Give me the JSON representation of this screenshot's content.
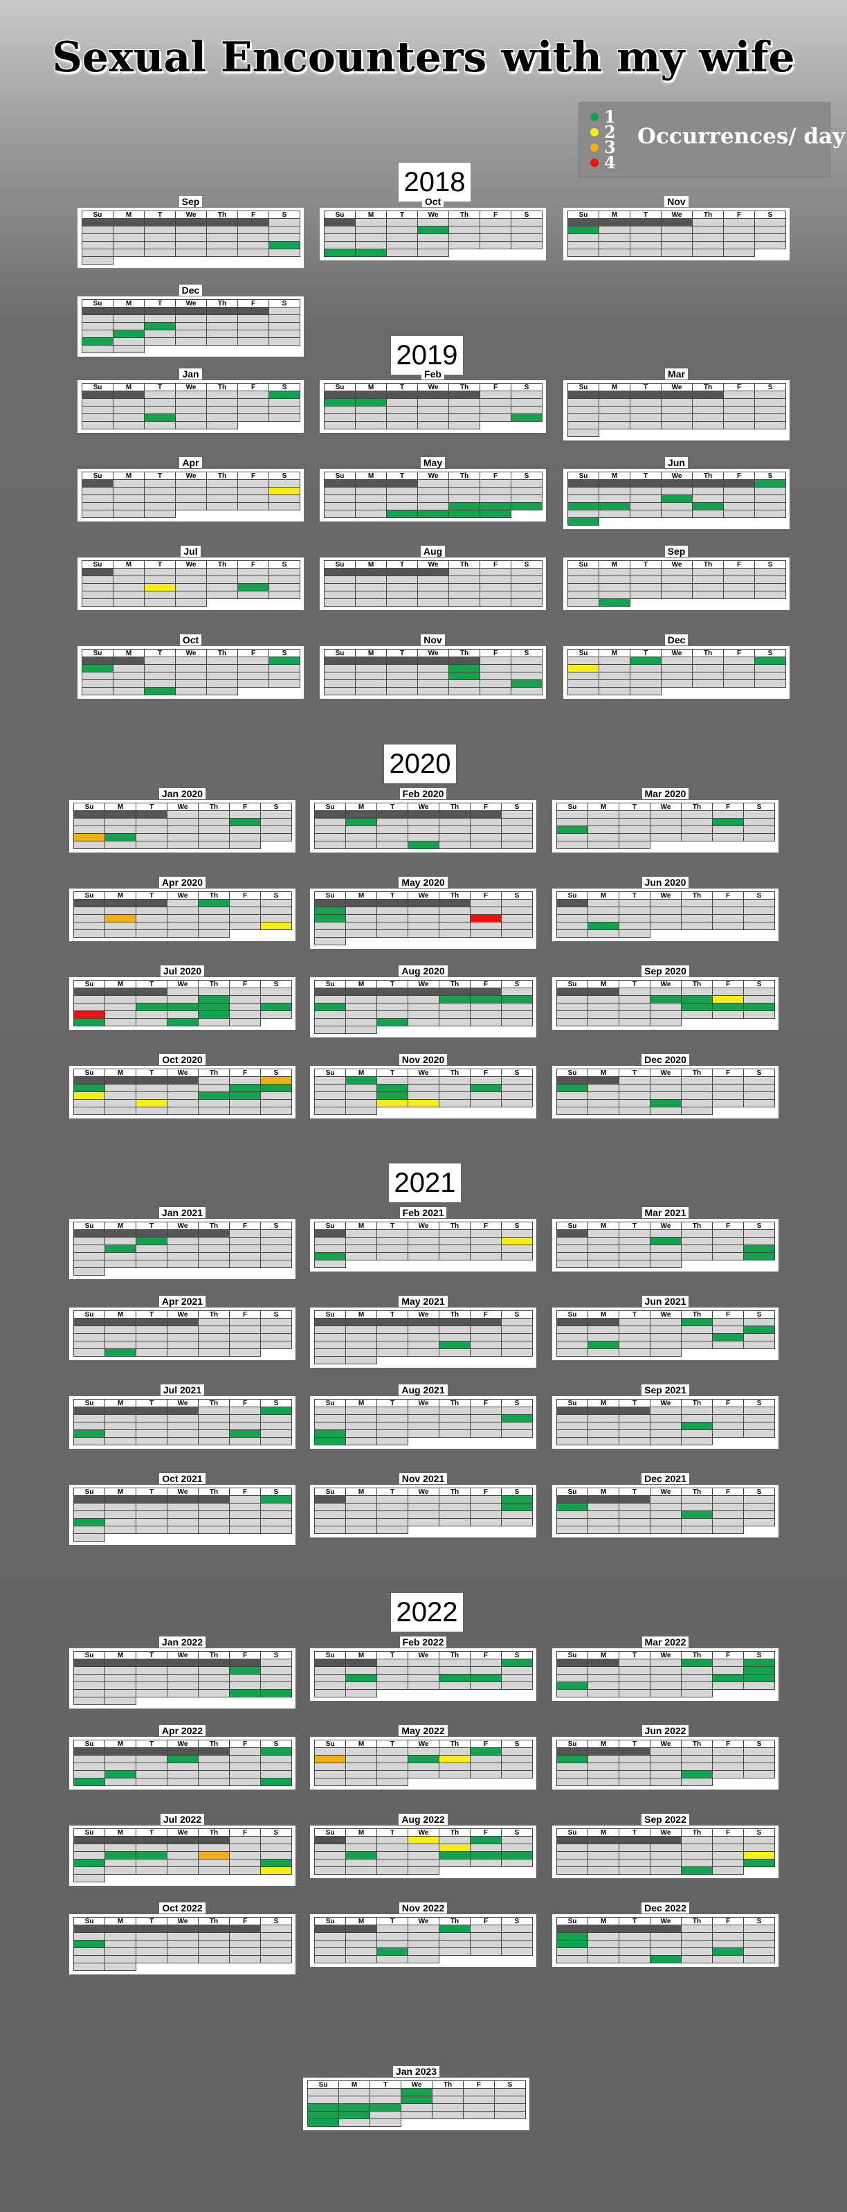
{
  "title": "Sexual Encounters with my wife",
  "legend": {
    "label": "Occurrences/ day",
    "items": [
      {
        "value": "1",
        "color": "#12a34e"
      },
      {
        "value": "2",
        "color": "#f7ee16"
      },
      {
        "value": "3",
        "color": "#f2b010"
      },
      {
        "value": "4",
        "color": "#ee1111"
      }
    ]
  },
  "day_headers": [
    "Su",
    "M",
    "T",
    "We",
    "Th",
    "F",
    "S"
  ],
  "chart_data": {
    "type": "heatmap",
    "title": "Sexual Encounters with my wife",
    "legend_title": "Occurrences/ day",
    "years": [
      {
        "year": "2018",
        "months": [
          {
            "name": "Sep",
            "first_weekday": 6,
            "days": 30,
            "counts": {
              "22": 1
            }
          },
          {
            "name": "Oct",
            "first_weekday": 1,
            "days": 31,
            "counts": {
              "10": 1,
              "28": 1,
              "29": 1
            }
          },
          {
            "name": "Nov",
            "first_weekday": 4,
            "days": 30,
            "counts": {
              "4": 1
            }
          },
          {
            "name": "Dec",
            "first_weekday": 6,
            "days": 31,
            "counts": {
              "11": 1,
              "17": 1,
              "23": 1
            }
          }
        ]
      },
      {
        "year": "2019",
        "months": [
          {
            "name": "Jan",
            "first_weekday": 2,
            "days": 31,
            "counts": {
              "5": 1,
              "22": 1
            }
          },
          {
            "name": "Feb",
            "first_weekday": 5,
            "days": 28,
            "counts": {
              "3": 1,
              "4": 1,
              "23": 1
            }
          },
          {
            "name": "Mar",
            "first_weekday": 5,
            "days": 31,
            "counts": {}
          },
          {
            "name": "Apr",
            "first_weekday": 1,
            "days": 30,
            "counts": {
              "13": 2
            }
          },
          {
            "name": "May",
            "first_weekday": 3,
            "days": 31,
            "counts": {
              "23": 1,
              "28": 1,
              "29": 1,
              "30": 1,
              "31": 1,
              "24": 1,
              "25": 1
            }
          },
          {
            "name": "Jun",
            "first_weekday": 6,
            "days": 30,
            "counts": {
              "1": 1,
              "12": 1,
              "16": 1,
              "17": 1,
              "20": 1,
              "30": 1
            }
          },
          {
            "name": "Jul",
            "first_weekday": 1,
            "days": 31,
            "counts": {
              "19": 1,
              "16": 2
            }
          },
          {
            "name": "Aug",
            "first_weekday": 4,
            "days": 31,
            "counts": {}
          },
          {
            "name": "Sep",
            "first_weekday": 0,
            "days": 30,
            "counts": {
              "30": 1
            }
          },
          {
            "name": "Oct",
            "first_weekday": 2,
            "days": 31,
            "counts": {
              "5": 1,
              "6": 1,
              "29": 1
            }
          },
          {
            "name": "Nov",
            "first_weekday": 5,
            "days": 30,
            "counts": {
              "7": 1,
              "14": 1,
              "23": 1
            }
          },
          {
            "name": "Dec",
            "first_weekday": 0,
            "days": 31,
            "counts": {
              "3": 1,
              "7": 1,
              "8": 2
            }
          }
        ]
      },
      {
        "year": "2020",
        "months": [
          {
            "name": "Jan 2020",
            "first_weekday": 3,
            "days": 31,
            "counts": {
              "10": 1,
              "19": 3,
              "20": 1
            }
          },
          {
            "name": "Feb 2020",
            "first_weekday": 6,
            "days": 29,
            "counts": {
              "3": 1,
              "26": 1
            }
          },
          {
            "name": "Mar 2020",
            "first_weekday": 0,
            "days": 31,
            "counts": {
              "13": 1,
              "15": 1
            }
          },
          {
            "name": "Apr 2020",
            "first_weekday": 3,
            "days": 30,
            "counts": {
              "2": 1,
              "13": 3,
              "25": 2
            }
          },
          {
            "name": "May 2020",
            "first_weekday": 5,
            "days": 31,
            "counts": {
              "3": 1,
              "10": 1,
              "15": 4
            }
          },
          {
            "name": "Jun 2020",
            "first_weekday": 1,
            "days": 30,
            "counts": {
              "22": 1
            }
          },
          {
            "name": "Jul 2020",
            "first_weekday": 3,
            "days": 31,
            "counts": {
              "9": 1,
              "14": 1,
              "15": 1,
              "16": 1,
              "18": 1,
              "19": 4,
              "23": 1,
              "26": 1,
              "29": 1
            }
          },
          {
            "name": "Aug 2020",
            "first_weekday": 6,
            "days": 31,
            "counts": {
              "6": 1,
              "7": 1,
              "8": 1,
              "9": 1,
              "25": 1
            }
          },
          {
            "name": "Sep 2020",
            "first_weekday": 2,
            "days": 30,
            "counts": {
              "9": 1,
              "10": 1,
              "11": 2,
              "17": 1,
              "18": 1,
              "19": 1
            }
          },
          {
            "name": "Oct 2020",
            "first_weekday": 4,
            "days": 31,
            "counts": {
              "3": 3,
              "4": 1,
              "9": 1,
              "10": 1,
              "11": 2,
              "15": 1,
              "16": 1,
              "20": 2
            }
          },
          {
            "name": "Nov 2020",
            "first_weekday": 0,
            "days": 30,
            "counts": {
              "2": 1,
              "10": 1,
              "13": 1,
              "17": 1,
              "24": 2,
              "25": 2
            }
          },
          {
            "name": "Dec 2020",
            "first_weekday": 2,
            "days": 31,
            "counts": {
              "6": 1,
              "23": 1
            }
          }
        ]
      },
      {
        "year": "2021",
        "months": [
          {
            "name": "Jan 2021",
            "first_weekday": 5,
            "days": 31,
            "counts": {
              "5": 1,
              "11": 1
            }
          },
          {
            "name": "Feb 2021",
            "first_weekday": 1,
            "days": 28,
            "counts": {
              "13": 2,
              "21": 1
            }
          },
          {
            "name": "Mar 2021",
            "first_weekday": 1,
            "days": 31,
            "counts": {
              "10": 1,
              "20": 1,
              "27": 1
            }
          },
          {
            "name": "Apr 2021",
            "first_weekday": 4,
            "days": 30,
            "counts": {
              "26": 1
            }
          },
          {
            "name": "May 2021",
            "first_weekday": 6,
            "days": 31,
            "counts": {
              "20": 1
            }
          },
          {
            "name": "Jun 2021",
            "first_weekday": 2,
            "days": 30,
            "counts": {
              "3": 1,
              "12": 1,
              "18": 1,
              "21": 1
            }
          },
          {
            "name": "Jul 2021",
            "first_weekday": 4,
            "days": 31,
            "counts": {
              "3": 1,
              "18": 1,
              "23": 1
            }
          },
          {
            "name": "Aug 2021",
            "first_weekday": 0,
            "days": 31,
            "counts": {
              "14": 1,
              "22": 1,
              "29": 1
            }
          },
          {
            "name": "Sep 2021",
            "first_weekday": 3,
            "days": 30,
            "counts": {
              "16": 1
            }
          },
          {
            "name": "Oct 2021",
            "first_weekday": 5,
            "days": 31,
            "counts": {
              "2": 1,
              "17": 1
            }
          },
          {
            "name": "Nov 2021",
            "first_weekday": 1,
            "days": 30,
            "counts": {
              "6": 1,
              "13": 1
            }
          },
          {
            "name": "Dec 2021",
            "first_weekday": 3,
            "days": 31,
            "counts": {
              "5": 1,
              "16": 1
            }
          }
        ]
      },
      {
        "year": "2022",
        "months": [
          {
            "name": "Jan 2022",
            "first_weekday": 6,
            "days": 31,
            "counts": {
              "7": 1,
              "28": 1,
              "29": 1
            }
          },
          {
            "name": "Feb 2022",
            "first_weekday": 2,
            "days": 28,
            "counts": {
              "5": 1,
              "14": 1,
              "17": 1,
              "18": 1
            }
          },
          {
            "name": "Mar 2022",
            "first_weekday": 2,
            "days": 31,
            "counts": {
              "3": 1,
              "5": 1,
              "12": 1,
              "18": 1,
              "19": 1,
              "20": 1
            }
          },
          {
            "name": "Apr 2022",
            "first_weekday": 5,
            "days": 30,
            "counts": {
              "2": 1,
              "6": 1,
              "18": 1,
              "24": 1,
              "30": 1
            }
          },
          {
            "name": "May 2022",
            "first_weekday": 0,
            "days": 31,
            "counts": {
              "8": 3,
              "12": 2,
              "6": 1,
              "11": 1
            }
          },
          {
            "name": "Jun 2022",
            "first_weekday": 3,
            "days": 30,
            "counts": {
              "5": 1,
              "23": 1
            }
          },
          {
            "name": "Jul 2022",
            "first_weekday": 5,
            "days": 31,
            "counts": {
              "11": 1,
              "12": 1,
              "14": 3,
              "17": 1,
              "23": 1,
              "30": 2
            }
          },
          {
            "name": "Aug 2022",
            "first_weekday": 1,
            "days": 31,
            "counts": {
              "3": 2,
              "5": 1,
              "11": 2,
              "15": 1,
              "18": 1,
              "19": 1,
              "20": 1
            }
          },
          {
            "name": "Sep 2022",
            "first_weekday": 4,
            "days": 30,
            "counts": {
              "17": 2,
              "24": 1,
              "29": 1
            }
          },
          {
            "name": "Oct 2022",
            "first_weekday": 6,
            "days": 31,
            "counts": {
              "9": 1
            }
          },
          {
            "name": "Nov 2022",
            "first_weekday": 2,
            "days": 30,
            "counts": {
              "22": 1,
              "3": 1
            }
          },
          {
            "name": "Dec 2022",
            "first_weekday": 4,
            "days": 31,
            "counts": {
              "4": 1,
              "11": 1,
              "23": 1,
              "28": 1
            }
          }
        ]
      },
      {
        "year": "",
        "months": [
          {
            "name": "Jan 2023",
            "first_weekday": 0,
            "days": 31,
            "counts": {
              "4": 1,
              "11": 1,
              "15": 1,
              "16": 1,
              "17": 1,
              "22": 1,
              "23": 1,
              "29": 1
            }
          }
        ]
      }
    ]
  }
}
